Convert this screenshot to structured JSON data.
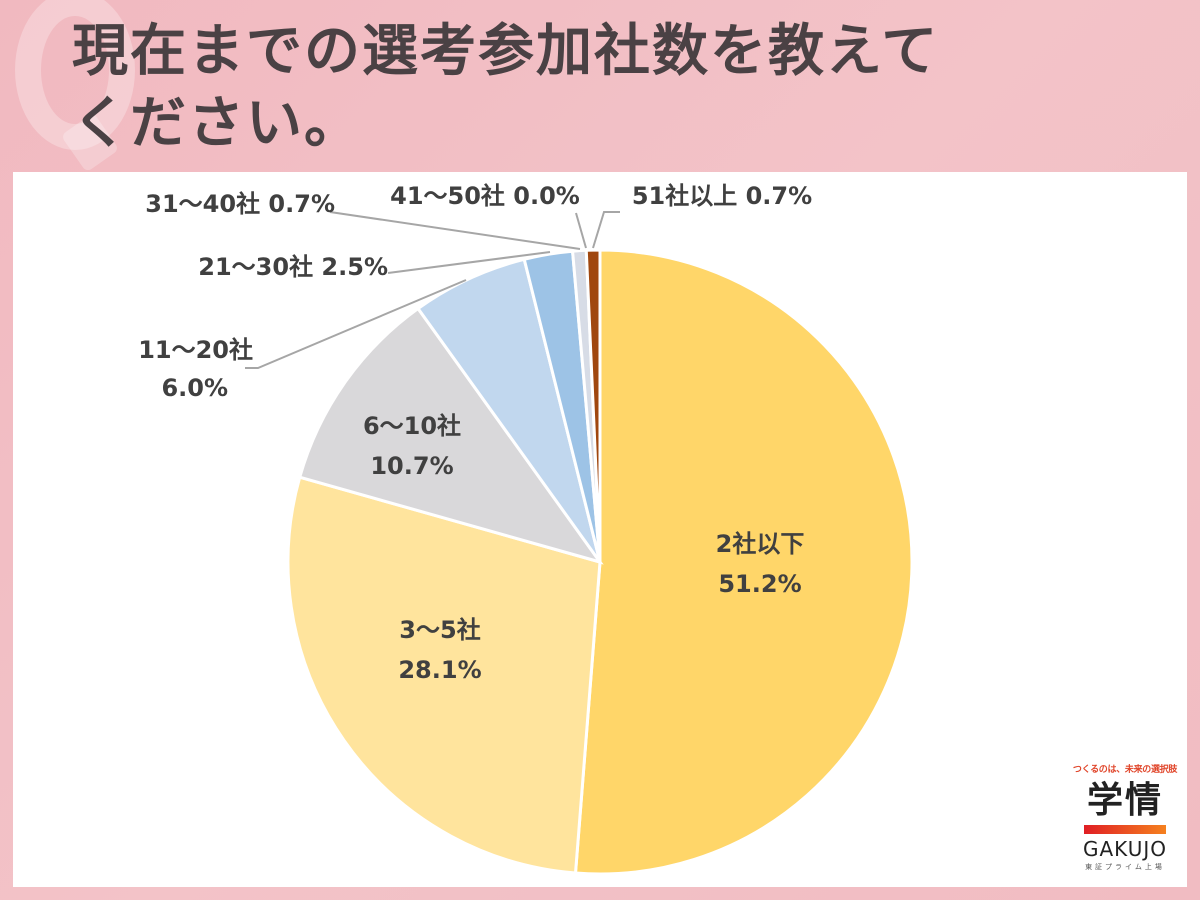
{
  "title": {
    "line1": "現在までの選考参加社数を教えて",
    "line2": "ください。"
  },
  "logo": {
    "tagline": "つくるのは、未来の選択肢",
    "kanji": "学情",
    "name": "GAKUJO",
    "sub": "東証プライム上場"
  },
  "chart_data": {
    "type": "pie",
    "title": "現在までの選考参加社数を教えてください。",
    "start_angle": "12 o'clock, clockwise",
    "categories": [
      "2社以下",
      "3〜5社",
      "6〜10社",
      "11〜20社",
      "21〜30社",
      "31〜40社",
      "41〜50社",
      "51社以上"
    ],
    "values": [
      51.2,
      28.1,
      10.7,
      6.0,
      2.5,
      0.7,
      0.0,
      0.7
    ],
    "unit": "%",
    "colors": [
      "#ffd669",
      "#ffe49d",
      "#d9d8da",
      "#c1d7ee",
      "#9dc3e6",
      "#d7dce6",
      "#e3e3e3",
      "#a0470f"
    ],
    "labels": [
      {
        "name": "2社以下",
        "value": "51.2%",
        "placement": "inside"
      },
      {
        "name": "3〜5社",
        "value": "28.1%",
        "placement": "inside"
      },
      {
        "name": "6〜10社",
        "value": "10.7%",
        "placement": "inside"
      },
      {
        "name": "11〜20社",
        "value": "6.0%",
        "placement": "outside-leader"
      },
      {
        "name": "21〜30社",
        "value": "2.5%",
        "placement": "outside-leader"
      },
      {
        "name": "31〜40社",
        "value": "0.7%",
        "placement": "outside-leader"
      },
      {
        "name": "41〜50社",
        "value": "0.0%",
        "placement": "outside-leader"
      },
      {
        "name": "51社以上",
        "value": "0.7%",
        "placement": "outside-leader"
      }
    ],
    "legend": "none (data labels)"
  }
}
